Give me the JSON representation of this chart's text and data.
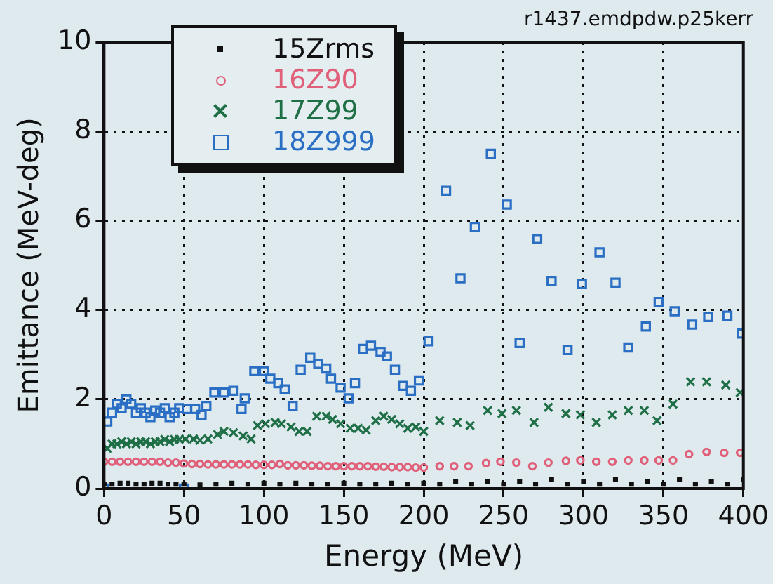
{
  "chart_data": {
    "type": "scatter",
    "xlabel": "Energy (MeV)",
    "ylabel": "Emittance (MeV-deg)",
    "annotations": [
      "r1437.emdpdw.p25kerr"
    ],
    "xlim": [
      0,
      400
    ],
    "ylim": [
      0,
      10
    ],
    "xticks": [
      0,
      50,
      100,
      150,
      200,
      250,
      300,
      350,
      400
    ],
    "yticks": [
      0,
      2,
      4,
      6,
      8,
      10
    ],
    "grid": true,
    "legend": "top left",
    "series": [
      {
        "name": "15Zrms",
        "color": "#111111",
        "marker": "square",
        "x": [
          0,
          5,
          10,
          15,
          20,
          25,
          30,
          35,
          40,
          45,
          50,
          60,
          70,
          80,
          90,
          100,
          110,
          120,
          130,
          140,
          150,
          160,
          170,
          180,
          190,
          200,
          210,
          220,
          230,
          240,
          250,
          260,
          270,
          280,
          290,
          300,
          310,
          320,
          330,
          340,
          350,
          360,
          370,
          380,
          390,
          400
        ],
        "values": [
          0.1,
          0.1,
          0.12,
          0.12,
          0.1,
          0.1,
          0.12,
          0.12,
          0.1,
          0.1,
          0.1,
          0.08,
          0.1,
          0.12,
          0.1,
          0.12,
          0.1,
          0.12,
          0.1,
          0.1,
          0.12,
          0.1,
          0.1,
          0.12,
          0.1,
          0.12,
          0.1,
          0.15,
          0.1,
          0.15,
          0.1,
          0.15,
          0.1,
          0.2,
          0.1,
          0.15,
          0.1,
          0.2,
          0.1,
          0.15,
          0.1,
          0.2,
          0.1,
          0.15,
          0.1,
          0.2
        ]
      },
      {
        "name": "16Z90",
        "color": "#e0607a",
        "marker": "circle",
        "x": [
          0,
          5,
          10,
          15,
          20,
          25,
          30,
          35,
          40,
          45,
          50,
          55,
          60,
          65,
          70,
          75,
          80,
          85,
          90,
          95,
          100,
          105,
          110,
          115,
          120,
          125,
          130,
          135,
          140,
          145,
          150,
          155,
          160,
          165,
          170,
          175,
          180,
          185,
          190,
          195,
          200,
          210,
          219,
          228,
          239,
          248,
          258,
          268,
          278,
          289,
          298,
          308,
          318,
          328,
          338,
          347,
          356,
          366,
          377,
          388,
          398
        ],
        "values": [
          0.6,
          0.6,
          0.6,
          0.6,
          0.6,
          0.6,
          0.6,
          0.6,
          0.58,
          0.58,
          0.56,
          0.55,
          0.55,
          0.54,
          0.54,
          0.54,
          0.54,
          0.54,
          0.54,
          0.53,
          0.53,
          0.53,
          0.55,
          0.52,
          0.52,
          0.52,
          0.51,
          0.51,
          0.5,
          0.5,
          0.5,
          0.5,
          0.5,
          0.5,
          0.49,
          0.49,
          0.48,
          0.48,
          0.48,
          0.47,
          0.47,
          0.5,
          0.5,
          0.5,
          0.57,
          0.6,
          0.58,
          0.5,
          0.58,
          0.62,
          0.63,
          0.6,
          0.6,
          0.63,
          0.63,
          0.63,
          0.63,
          0.77,
          0.82,
          0.8,
          0.8
        ]
      },
      {
        "name": "17Z99",
        "color": "#1e6e46",
        "marker": "cross",
        "x": [
          2,
          5,
          8,
          11,
          14,
          17,
          20,
          23,
          26,
          29,
          32,
          35,
          38,
          41,
          44,
          47,
          51,
          56,
          60,
          65,
          71,
          75,
          81,
          87,
          92,
          96,
          101,
          107,
          111,
          117,
          122,
          127,
          133,
          139,
          143,
          148,
          154,
          159,
          164,
          170,
          175,
          180,
          185,
          190,
          195,
          200,
          210,
          221,
          229,
          240,
          249,
          258,
          269,
          278,
          289,
          298,
          308,
          318,
          328,
          338,
          346,
          356,
          367,
          377,
          389,
          398
        ],
        "values": [
          0.9,
          1.0,
          1.0,
          1.05,
          1.0,
          1.05,
          1.0,
          1.05,
          1.05,
          1.0,
          1.05,
          1.05,
          1.1,
          1.05,
          1.1,
          1.1,
          1.11,
          1.11,
          1.08,
          1.11,
          1.21,
          1.28,
          1.25,
          1.18,
          1.11,
          1.41,
          1.45,
          1.48,
          1.45,
          1.38,
          1.28,
          1.28,
          1.62,
          1.62,
          1.55,
          1.45,
          1.35,
          1.35,
          1.31,
          1.52,
          1.62,
          1.55,
          1.45,
          1.35,
          1.38,
          1.28,
          1.52,
          1.48,
          1.41,
          1.75,
          1.68,
          1.75,
          1.48,
          1.82,
          1.68,
          1.65,
          1.48,
          1.65,
          1.75,
          1.75,
          1.52,
          1.89,
          2.39,
          2.39,
          2.32,
          2.15
        ]
      },
      {
        "name": "18Z999",
        "color": "#2a6fc4",
        "marker": "square",
        "x": [
          0,
          2,
          5,
          8,
          11,
          14,
          17,
          20,
          23,
          26,
          29,
          32,
          35,
          38,
          41,
          44,
          47,
          50,
          52,
          57,
          61,
          64,
          69,
          75,
          81,
          86,
          88,
          94,
          100,
          104,
          109,
          113,
          118,
          123,
          129,
          134,
          139,
          142,
          148,
          153,
          157,
          162,
          167,
          173,
          177,
          182,
          187,
          192,
          197,
          203,
          214,
          223,
          232,
          242,
          252,
          260,
          271,
          280,
          290,
          299,
          310,
          320,
          328,
          339,
          347,
          357,
          368,
          378,
          390,
          399
        ],
        "values": [
          0,
          1.5,
          1.7,
          1.9,
          1.8,
          2.0,
          1.9,
          1.7,
          1.8,
          1.7,
          1.6,
          1.75,
          1.7,
          1.8,
          1.6,
          1.7,
          1.8,
          0,
          1.78,
          1.78,
          1.65,
          1.85,
          2.15,
          2.15,
          2.19,
          1.78,
          2.02,
          2.63,
          2.63,
          2.46,
          2.36,
          2.22,
          1.85,
          2.66,
          2.93,
          2.79,
          2.69,
          2.46,
          2.26,
          2.02,
          2.36,
          3.13,
          3.2,
          3.06,
          2.96,
          2.66,
          2.3,
          2.19,
          2.42,
          3.3,
          6.67,
          4.71,
          5.86,
          7.5,
          6.36,
          3.26,
          5.59,
          4.65,
          3.1,
          4.58,
          5.29,
          4.61,
          3.16,
          3.63,
          4.18,
          3.97,
          3.67,
          3.84,
          3.87,
          3.47
        ]
      }
    ]
  }
}
